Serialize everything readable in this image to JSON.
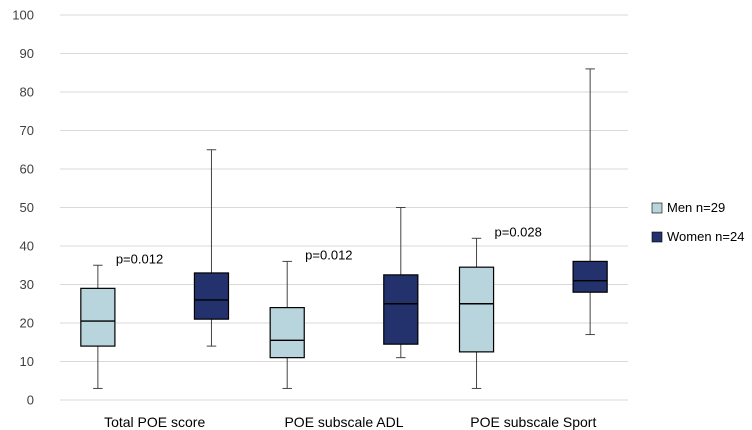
{
  "chart_data": {
    "type": "boxplot",
    "title": "",
    "xlabel": "",
    "ylabel": "",
    "ylim": [
      0,
      100
    ],
    "yticks": [
      0,
      10,
      20,
      30,
      40,
      50,
      60,
      70,
      80,
      90,
      100
    ],
    "grid": true,
    "legend_position": "right",
    "categories": [
      "Total POE score",
      "POE subscale ADL",
      "POE subscale Sport"
    ],
    "series": [
      {
        "name": "Men n=29",
        "color": "#b8d4dc",
        "boxes": [
          {
            "min": 3,
            "q1": 14,
            "median": 20.5,
            "q3": 29,
            "max": 35
          },
          {
            "min": 3,
            "q1": 11,
            "median": 15.5,
            "q3": 24,
            "max": 36
          },
          {
            "min": 3,
            "q1": 12.5,
            "median": 25,
            "q3": 34.5,
            "max": 42
          }
        ]
      },
      {
        "name": "Women n=24",
        "color": "#23316c",
        "boxes": [
          {
            "min": 14,
            "q1": 21,
            "median": 26,
            "q3": 33,
            "max": 65
          },
          {
            "min": 11,
            "q1": 14.5,
            "median": 25,
            "q3": 32.5,
            "max": 50
          },
          {
            "min": 17,
            "q1": 28,
            "median": 31,
            "q3": 36,
            "max": 86
          }
        ]
      }
    ],
    "annotations": [
      "p=0.012",
      "p=0.012",
      "p=0.028"
    ]
  }
}
